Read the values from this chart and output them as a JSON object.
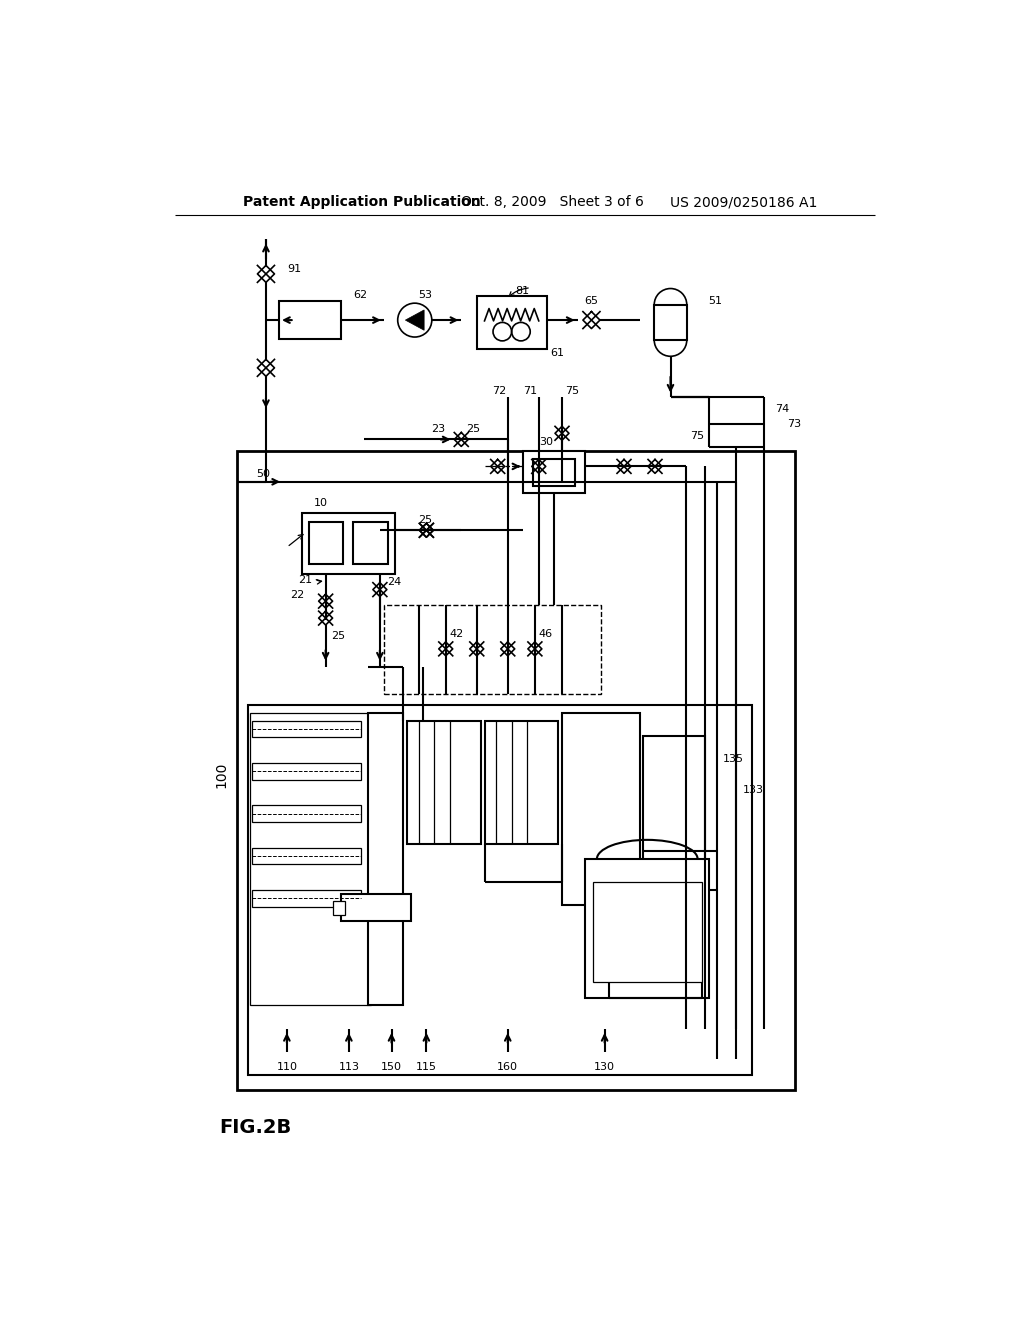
{
  "bg_color": "#ffffff",
  "line_color": "#000000",
  "header_left": "Patent Application Publication",
  "header_center": "Oct. 8, 2009   Sheet 3 of 6",
  "header_right": "US 2009/0250186 A1",
  "figure_label": "FIG.2B",
  "page_width": 10.24,
  "page_height": 13.2
}
